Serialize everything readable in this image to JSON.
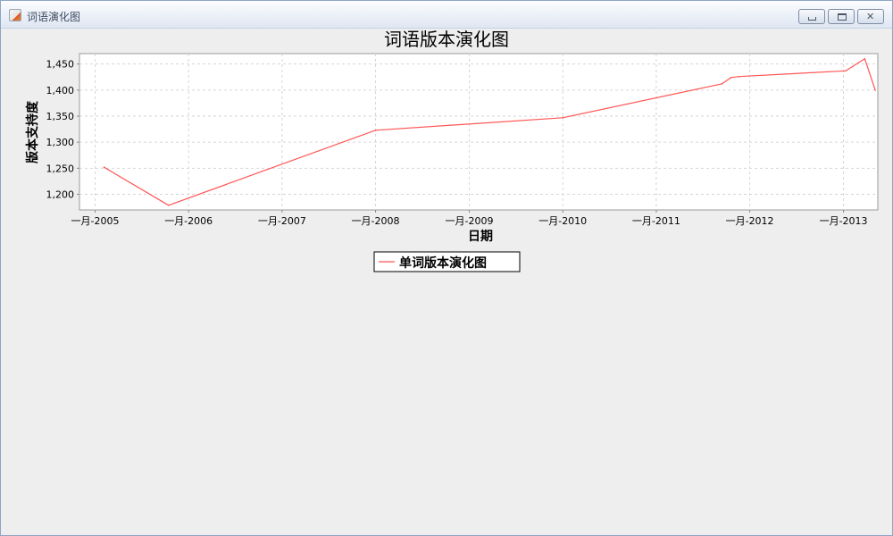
{
  "window": {
    "title": "词语演化图",
    "icon": "java-cup-icon"
  },
  "chart_data": {
    "type": "line",
    "title": "词语版本演化图",
    "xlabel": "日期",
    "ylabel": "版本支持度",
    "x_type": "date",
    "xlim": [
      "2004-11-01",
      "2013-05-15"
    ],
    "ylim": [
      1170,
      1470
    ],
    "x_ticks": [
      {
        "date": "2005-01-01",
        "label": "一月-2005"
      },
      {
        "date": "2006-01-01",
        "label": "一月-2006"
      },
      {
        "date": "2007-01-01",
        "label": "一月-2007"
      },
      {
        "date": "2008-01-01",
        "label": "一月-2008"
      },
      {
        "date": "2009-01-01",
        "label": "一月-2009"
      },
      {
        "date": "2010-01-01",
        "label": "一月-2010"
      },
      {
        "date": "2011-01-01",
        "label": "一月-2011"
      },
      {
        "date": "2012-01-01",
        "label": "一月-2012"
      },
      {
        "date": "2013-01-01",
        "label": "一月-2013"
      }
    ],
    "y_ticks": [
      {
        "value": 1200,
        "label": "1,200"
      },
      {
        "value": 1250,
        "label": "1,250"
      },
      {
        "value": 1300,
        "label": "1,300"
      },
      {
        "value": 1350,
        "label": "1,350"
      },
      {
        "value": 1400,
        "label": "1,400"
      },
      {
        "value": 1450,
        "label": "1,450"
      }
    ],
    "grid": true,
    "legend_position": "bottom",
    "series": [
      {
        "name": "单词版本演化图",
        "color": "#ff5555",
        "points": [
          {
            "x": "2005-02-05",
            "y": 1252
          },
          {
            "x": "2005-10-15",
            "y": 1179
          },
          {
            "x": "2008-01-01",
            "y": 1323
          },
          {
            "x": "2010-01-01",
            "y": 1347
          },
          {
            "x": "2011-09-15",
            "y": 1412
          },
          {
            "x": "2011-10-20",
            "y": 1424
          },
          {
            "x": "2011-11-20",
            "y": 1426
          },
          {
            "x": "2013-01-10",
            "y": 1437
          },
          {
            "x": "2013-03-25",
            "y": 1460
          },
          {
            "x": "2013-05-05",
            "y": 1400
          }
        ]
      }
    ]
  }
}
